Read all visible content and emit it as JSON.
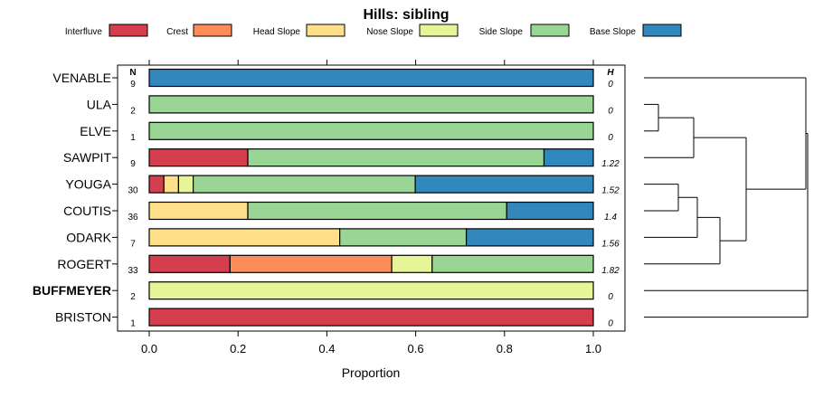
{
  "chart_data": {
    "type": "bar",
    "title": "Hills: sibling",
    "xlabel": "Proportion",
    "ylabel": "",
    "xlim": [
      0,
      1
    ],
    "x_ticks": [
      "0.0",
      "0.2",
      "0.4",
      "0.6",
      "0.8",
      "1.0"
    ],
    "n_header": "N",
    "h_header": "H",
    "legend": [
      {
        "name": "Interfluve",
        "color": "#D53E4F"
      },
      {
        "name": "Crest",
        "color": "#FC8D59"
      },
      {
        "name": "Head Slope",
        "color": "#FEE08B"
      },
      {
        "name": "Nose Slope",
        "color": "#E6F598"
      },
      {
        "name": "Side Slope",
        "color": "#99D594"
      },
      {
        "name": "Base Slope",
        "color": "#3288BD"
      }
    ],
    "categories": [
      "VENABLE",
      "ULA",
      "ELVE",
      "SAWPIT",
      "YOUGA",
      "COUTIS",
      "ODARK",
      "ROGERT",
      "BUFFMEYER",
      "BRISTON"
    ],
    "bold_category": "BUFFMEYER",
    "n_values": [
      "9",
      "2",
      "1",
      "9",
      "30",
      "36",
      "7",
      "33",
      "2",
      "1"
    ],
    "h_values": [
      "0",
      "0",
      "0",
      "1.22",
      "1.52",
      "1.4",
      "1.56",
      "1.82",
      "0",
      "0"
    ],
    "series": [
      {
        "name": "Interfluve",
        "values": [
          0,
          0,
          0,
          0.222,
          0.033,
          0,
          0,
          0.182,
          0,
          1.0
        ]
      },
      {
        "name": "Crest",
        "values": [
          0,
          0,
          0,
          0,
          0,
          0,
          0,
          0.364,
          0,
          0
        ]
      },
      {
        "name": "Head Slope",
        "values": [
          0,
          0,
          0,
          0,
          0.033,
          0.222,
          0.429,
          0,
          0,
          0
        ]
      },
      {
        "name": "Nose Slope",
        "values": [
          0,
          0,
          0,
          0,
          0.033,
          0,
          0,
          0.091,
          1.0,
          0
        ]
      },
      {
        "name": "Side Slope",
        "values": [
          0,
          1.0,
          1.0,
          0.667,
          0.5,
          0.583,
          0.285,
          0.363,
          0,
          0
        ]
      },
      {
        "name": "Base Slope",
        "values": [
          1.0,
          0,
          0,
          0.111,
          0.401,
          0.195,
          0.286,
          0,
          0,
          0
        ]
      }
    ],
    "dendrogram_order": [
      "VENABLE",
      "ULA",
      "ELVE",
      "SAWPIT",
      "YOUGA",
      "COUTIS",
      "ODARK",
      "ROGERT",
      "BUFFMEYER",
      "BRISTON"
    ]
  }
}
